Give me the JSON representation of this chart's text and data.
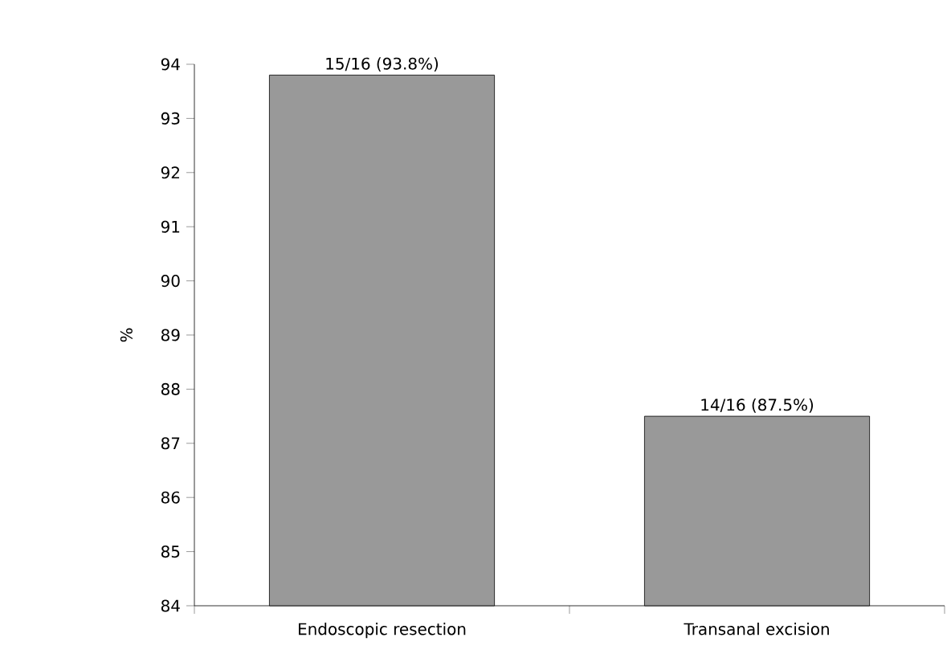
{
  "chart_data": {
    "type": "bar",
    "ylabel": "%",
    "categories": [
      "Endoscopic resection",
      "Transanal excision"
    ],
    "values": [
      93.8,
      87.5
    ],
    "value_labels": [
      "15/16 (93.8%)",
      "14/16 (87.5%)"
    ],
    "color": "#999999",
    "ylim": [
      84,
      94
    ],
    "yticks": [
      84,
      85,
      86,
      87,
      88,
      89,
      90,
      91,
      92,
      93,
      94
    ],
    "grid": false
  }
}
